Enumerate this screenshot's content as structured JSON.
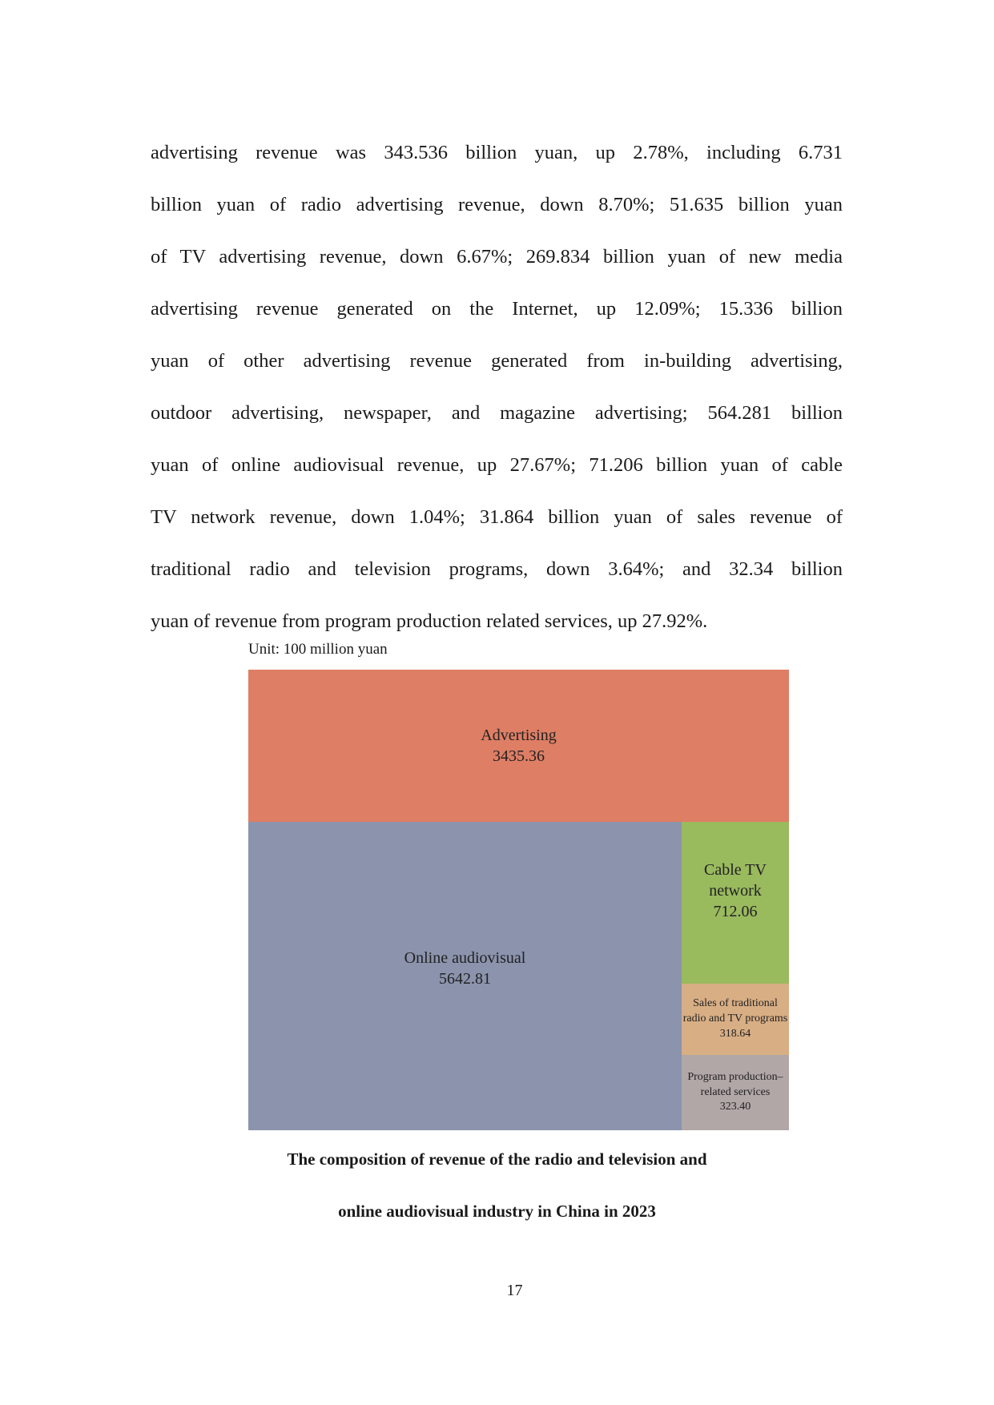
{
  "body_lines": [
    "advertising revenue was 343.536 billion yuan, up 2.78%, including 6.731",
    "billion yuan of radio advertising revenue, down 8.70%; 51.635 billion yuan",
    "of TV advertising revenue, down 6.67%; 269.834 billion yuan of new media",
    "advertising revenue generated on the Internet, up 12.09%; 15.336 billion",
    "yuan of other advertising revenue generated from in-building advertising,",
    "outdoor advertising, newspaper, and magazine advertising; 564.281 billion",
    "yuan of online audiovisual revenue, up 27.67%; 71.206 billion yuan of cable",
    "TV network revenue, down 1.04%; 31.864 billion yuan of sales revenue of",
    "traditional radio and television programs, down 3.64%; and 32.34 billion",
    "yuan of revenue from program production related services, up 27.92%."
  ],
  "chart_data": {
    "type": "treemap",
    "unit_label": "Unit: 100 million yuan",
    "items": [
      {
        "label": "Advertising",
        "value": 3435.36,
        "value_text": "3435.36",
        "color": "#de7e64"
      },
      {
        "label": "Online audiovisual",
        "value": 5642.81,
        "value_text": "5642.81",
        "color": "#8b93ad"
      },
      {
        "label_lines": [
          "Cable TV",
          "network"
        ],
        "value": 712.06,
        "value_text": "712.06",
        "color": "#9aba5e"
      },
      {
        "label_lines": [
          "Sales of traditional",
          "radio and TV programs"
        ],
        "value": 318.64,
        "value_text": "318.64",
        "color": "#d8ae84"
      },
      {
        "label_lines": [
          "Program production–",
          "related services"
        ],
        "value": 323.4,
        "value_text": "323.40",
        "color": "#b1a7a6"
      }
    ]
  },
  "caption": {
    "line1": "The composition of revenue of the radio and television and",
    "line2": "online audiovisual industry in China in 2023"
  },
  "page_number": "17"
}
